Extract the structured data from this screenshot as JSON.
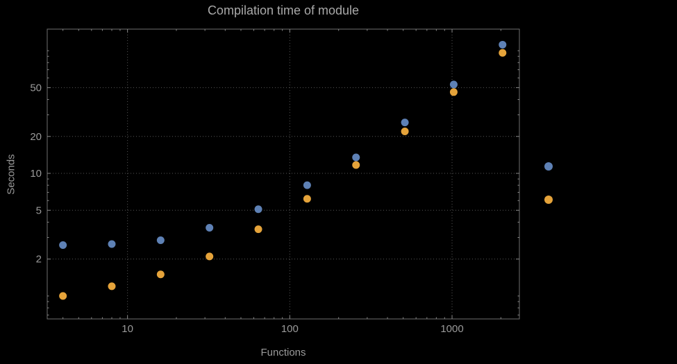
{
  "page": {
    "background": "#000000"
  },
  "styles": {
    "frame_color": "#6f6f6f",
    "grid_color": "#585858",
    "tick_color": "#8a8a8a",
    "text_color": "#9a9a9a",
    "title_color": "#a9a9a9"
  },
  "chart_data": {
    "type": "scatter",
    "title": "Compilation time of module",
    "xlabel": "Functions",
    "ylabel": "Seconds",
    "x_scale": "log",
    "y_scale": "log",
    "grid": true,
    "legend_position": "right",
    "xlim": [
      3.2,
      2600
    ],
    "ylim": [
      0.65,
      150
    ],
    "x_ticks": [
      10,
      100,
      1000
    ],
    "y_ticks": [
      2,
      5,
      10,
      20,
      50
    ],
    "x": [
      4,
      8,
      16,
      32,
      64,
      128,
      256,
      512,
      1024,
      2048
    ],
    "series": [
      {
        "name": "blue",
        "color": "#5e81b5",
        "values": [
          2.6,
          2.65,
          2.85,
          3.6,
          5.1,
          8.0,
          13.5,
          26,
          53,
          112
        ]
      },
      {
        "name": "orange",
        "color": "#e5a33a",
        "values": [
          1.0,
          1.2,
          1.5,
          2.1,
          3.5,
          6.2,
          11.7,
          22,
          46,
          96
        ]
      }
    ]
  }
}
